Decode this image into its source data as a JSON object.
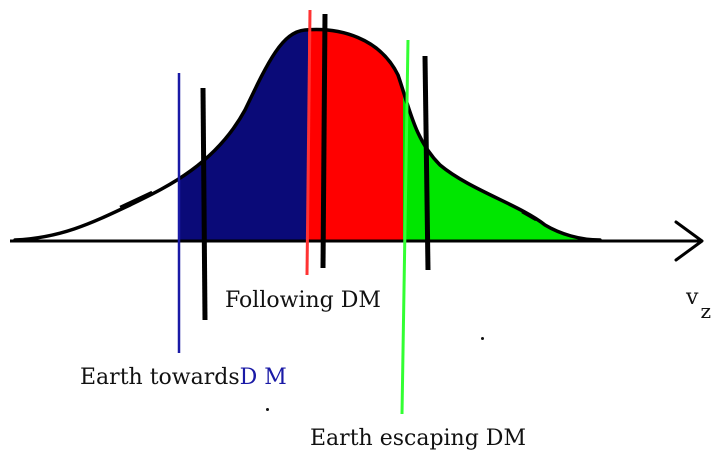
{
  "labels": {
    "following": "Following DM",
    "towards_prefix": "Earth towards",
    "towards_dm": "D M",
    "escaping": "Earth escaping DM",
    "axis_symbol": "v",
    "axis_subscript": "z"
  },
  "regions": [
    {
      "name": "earth-towards-dm-region",
      "color": "#0a0a78"
    },
    {
      "name": "following-dm-region",
      "color": "#ff0000"
    },
    {
      "name": "earth-escaping-dm-region",
      "color": "#00e600"
    }
  ],
  "colors": {
    "navy": "#0a0a78",
    "red": "#ff0000",
    "green": "#00e600",
    "outline": "#000000",
    "blue_line": "#1a1aa6",
    "red_line": "#ff3333",
    "green_line": "#33ff33"
  }
}
